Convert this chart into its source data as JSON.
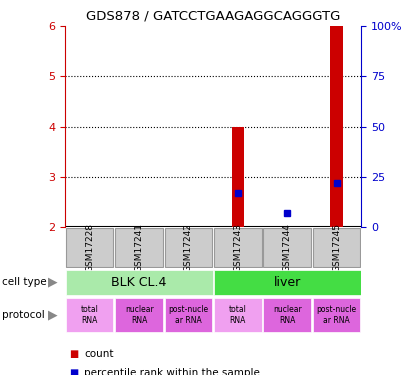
{
  "title": "GDS878 / GATCCTGAAGAGGCAGGGTG",
  "samples": [
    "GSM17228",
    "GSM17241",
    "GSM17242",
    "GSM17243",
    "GSM17244",
    "GSM17245"
  ],
  "count_values": [
    null,
    null,
    null,
    4.0,
    null,
    6.0
  ],
  "percentile_values": [
    null,
    null,
    null,
    17.0,
    7.0,
    22.0
  ],
  "ylim_left": [
    2,
    6
  ],
  "ylim_right": [
    0,
    100
  ],
  "yticks_left": [
    2,
    3,
    4,
    5,
    6
  ],
  "yticks_right": [
    0,
    25,
    50,
    75,
    100
  ],
  "ylabel_left_color": "#cc0000",
  "ylabel_right_color": "#0000cc",
  "grid_yticks": [
    3,
    4,
    5
  ],
  "cell_types": [
    {
      "label": "BLK CL.4",
      "start": 0,
      "end": 3,
      "color": "#aaeaaa"
    },
    {
      "label": "liver",
      "start": 3,
      "end": 6,
      "color": "#44dd44"
    }
  ],
  "protocols": [
    {
      "label": "total\nRNA",
      "color": "#f0a0f0"
    },
    {
      "label": "nuclear\nRNA",
      "color": "#dd66dd"
    },
    {
      "label": "post-nucle\nar RNA",
      "color": "#dd66dd"
    },
    {
      "label": "total\nRNA",
      "color": "#f0a0f0"
    },
    {
      "label": "nuclear\nRNA",
      "color": "#dd66dd"
    },
    {
      "label": "post-nucle\nar RNA",
      "color": "#dd66dd"
    }
  ],
  "bar_color": "#cc0000",
  "dot_color": "#0000cc",
  "sample_bg_color": "#cccccc",
  "sample_border_color": "#999999",
  "legend_dot_red": "#cc0000",
  "legend_dot_blue": "#0000cc",
  "bar_width": 0.25
}
